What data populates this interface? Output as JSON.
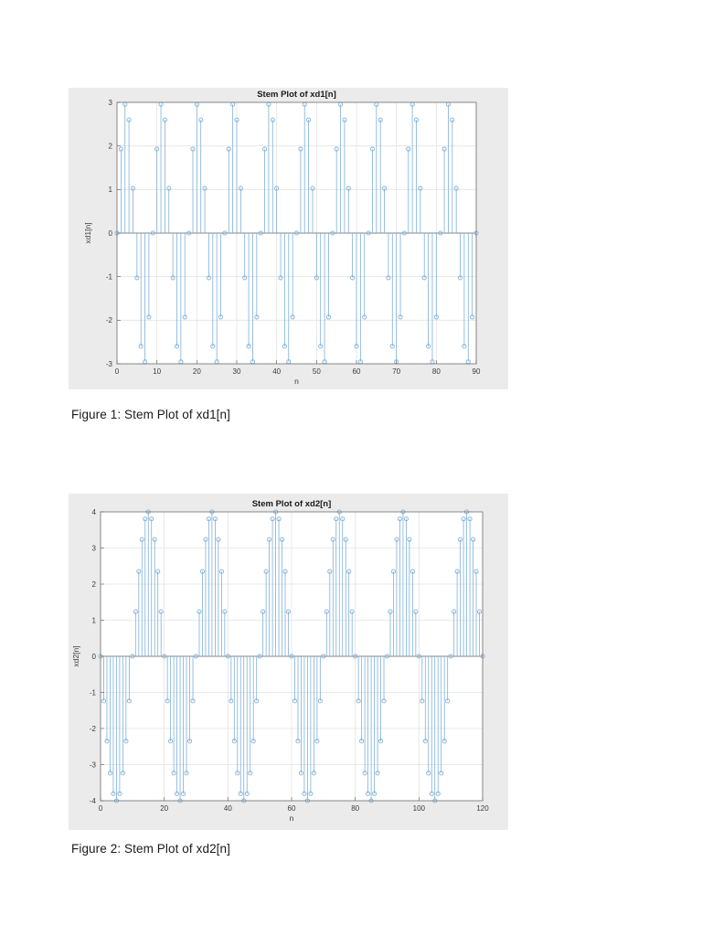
{
  "figures": [
    {
      "caption": "Figure 1: Stem Plot of xd1[n]"
    },
    {
      "caption": "Figure 2: Stem Plot of xd2[n]"
    }
  ],
  "chart_data": [
    {
      "type": "stem",
      "title": "Stem Plot of xd1[n]",
      "xlabel": "n",
      "ylabel": "xd1[n]",
      "n_range": [
        0,
        90
      ],
      "xlim": [
        0,
        90
      ],
      "ylim": [
        -3,
        3
      ],
      "xticks": [
        0,
        10,
        20,
        30,
        40,
        50,
        60,
        70,
        80,
        90
      ],
      "yticks": [
        -3,
        -2,
        -1,
        0,
        1,
        2,
        3
      ],
      "grid": true,
      "stem_color": "#7fb0d8",
      "marker": "open-circle",
      "y": [
        0,
        1.928,
        2.954,
        2.598,
        1.026,
        -1.026,
        -2.598,
        -2.954,
        -1.928,
        0,
        1.928,
        2.954,
        2.598,
        1.026,
        -1.026,
        -2.598,
        -2.954,
        -1.928,
        0,
        1.928,
        2.954,
        2.598,
        1.026,
        -1.026,
        -2.598,
        -2.954,
        -1.928,
        0,
        1.928,
        2.954,
        2.598,
        1.026,
        -1.026,
        -2.598,
        -2.954,
        -1.928,
        0,
        1.928,
        2.954,
        2.598,
        1.026,
        -1.026,
        -2.598,
        -2.954,
        -1.928,
        0,
        1.928,
        2.954,
        2.598,
        1.026,
        -1.026,
        -2.598,
        -2.954,
        -1.928,
        0,
        1.928,
        2.954,
        2.598,
        1.026,
        -1.026,
        -2.598,
        -2.954,
        -1.928,
        0,
        1.928,
        2.954,
        2.598,
        1.026,
        -1.026,
        -2.598,
        -2.954,
        -1.928,
        0,
        1.928,
        2.954,
        2.598,
        1.026,
        -1.026,
        -2.598,
        -2.954,
        -1.928,
        0,
        1.928,
        2.954,
        2.598,
        1.026,
        -1.026,
        -2.598,
        -2.954,
        -1.928,
        0
      ]
    },
    {
      "type": "stem",
      "title": "Stem Plot of xd2[n]",
      "xlabel": "n",
      "ylabel": "xd2[n]",
      "n_range": [
        0,
        120
      ],
      "xlim": [
        0,
        120
      ],
      "ylim": [
        -4,
        4
      ],
      "xticks": [
        0,
        20,
        40,
        60,
        80,
        100,
        120
      ],
      "yticks": [
        -4,
        -3,
        -2,
        -1,
        0,
        1,
        2,
        3,
        4
      ],
      "grid": true,
      "stem_color": "#7fb0d8",
      "marker": "open-circle",
      "y": [
        0,
        -1.236,
        -2.351,
        -3.236,
        -3.804,
        -4,
        -3.804,
        -3.236,
        -2.351,
        -1.236,
        0,
        1.236,
        2.351,
        3.236,
        3.804,
        4,
        3.804,
        3.236,
        2.351,
        1.236,
        0,
        -1.236,
        -2.351,
        -3.236,
        -3.804,
        -4,
        -3.804,
        -3.236,
        -2.351,
        -1.236,
        0,
        1.236,
        2.351,
        3.236,
        3.804,
        4,
        3.804,
        3.236,
        2.351,
        1.236,
        0,
        -1.236,
        -2.351,
        -3.236,
        -3.804,
        -4,
        -3.804,
        -3.236,
        -2.351,
        -1.236,
        0,
        1.236,
        2.351,
        3.236,
        3.804,
        4,
        3.804,
        3.236,
        2.351,
        1.236,
        0,
        -1.236,
        -2.351,
        -3.236,
        -3.804,
        -4,
        -3.804,
        -3.236,
        -2.351,
        -1.236,
        0,
        1.236,
        2.351,
        3.236,
        3.804,
        4,
        3.804,
        3.236,
        2.351,
        1.236,
        0,
        -1.236,
        -2.351,
        -3.236,
        -3.804,
        -4,
        -3.804,
        -3.236,
        -2.351,
        -1.236,
        0,
        1.236,
        2.351,
        3.236,
        3.804,
        4,
        3.804,
        3.236,
        2.351,
        1.236,
        0,
        -1.236,
        -2.351,
        -3.236,
        -3.804,
        -4,
        -3.804,
        -3.236,
        -2.351,
        -1.236,
        0,
        1.236,
        2.351,
        3.236,
        3.804,
        4,
        3.804,
        3.236,
        2.351,
        1.236,
        0
      ]
    }
  ]
}
